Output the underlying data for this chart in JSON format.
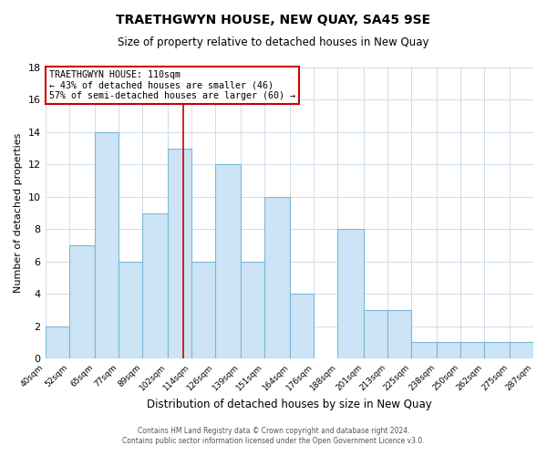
{
  "title": "TRAETHGWYN HOUSE, NEW QUAY, SA45 9SE",
  "subtitle": "Size of property relative to detached houses in New Quay",
  "xlabel": "Distribution of detached houses by size in New Quay",
  "ylabel": "Number of detached properties",
  "bar_edges": [
    40,
    52,
    65,
    77,
    89,
    102,
    114,
    126,
    139,
    151,
    164,
    176,
    188,
    201,
    213,
    225,
    238,
    250,
    262,
    275,
    287
  ],
  "bar_heights": [
    2,
    7,
    14,
    6,
    9,
    13,
    6,
    12,
    6,
    10,
    4,
    0,
    8,
    3,
    3,
    1,
    1,
    1,
    1,
    1
  ],
  "bar_color": "#cce4f5",
  "bar_edge_color": "#7ab8d9",
  "annotation_title": "TRAETHGWYN HOUSE: 110sqm",
  "annotation_line1": "← 43% of detached houses are smaller (46)",
  "annotation_line2": "57% of semi-detached houses are larger (60) →",
  "annotation_box_edge_color": "#cc0000",
  "property_line_x": 110,
  "ylim": [
    0,
    18
  ],
  "yticks": [
    0,
    2,
    4,
    6,
    8,
    10,
    12,
    14,
    16,
    18
  ],
  "tick_labels": [
    "40sqm",
    "52sqm",
    "65sqm",
    "77sqm",
    "89sqm",
    "102sqm",
    "114sqm",
    "126sqm",
    "139sqm",
    "151sqm",
    "164sqm",
    "176sqm",
    "188sqm",
    "201sqm",
    "213sqm",
    "225sqm",
    "238sqm",
    "250sqm",
    "262sqm",
    "275sqm",
    "287sqm"
  ],
  "footer1": "Contains HM Land Registry data © Crown copyright and database right 2024.",
  "footer2": "Contains public sector information licensed under the Open Government Licence v3.0.",
  "background_color": "#ffffff",
  "grid_color": "#d0dce8"
}
